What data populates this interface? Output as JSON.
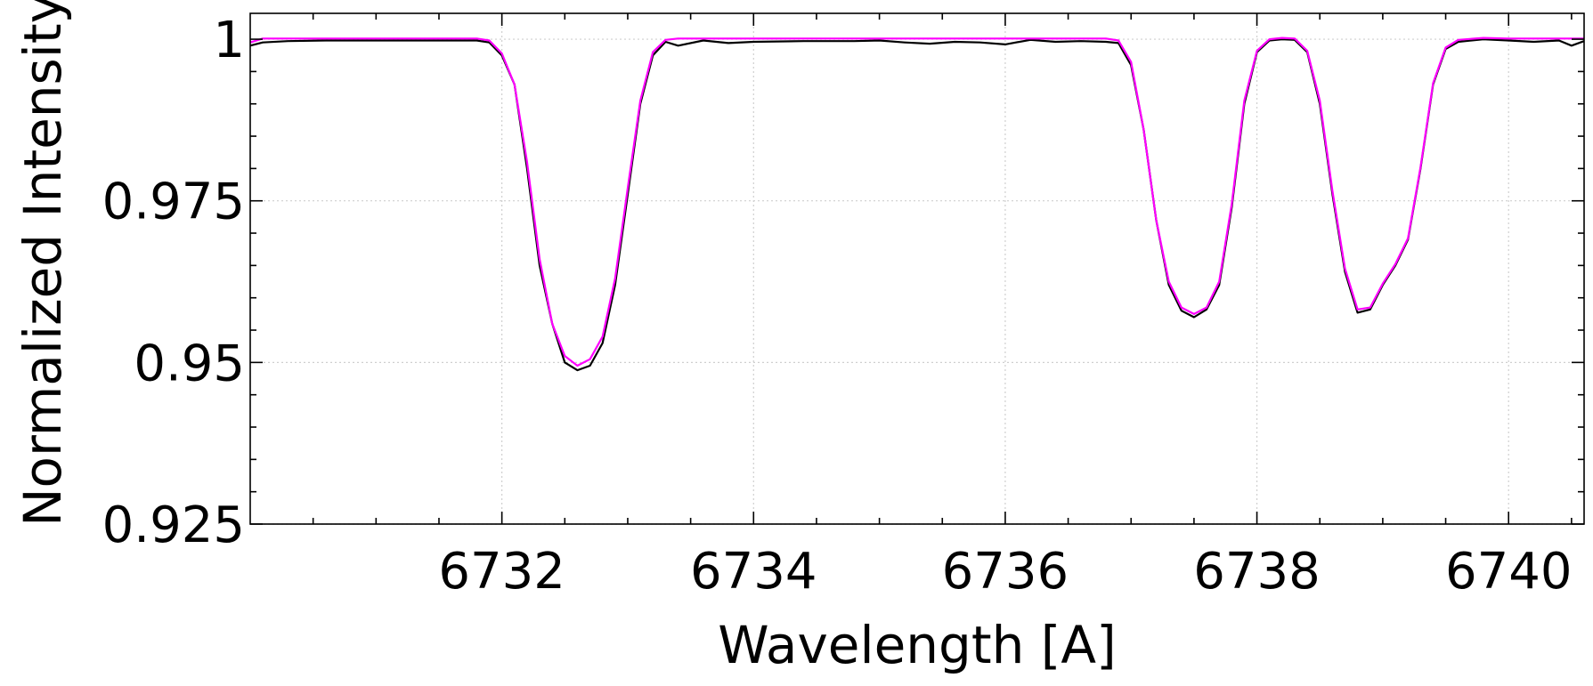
{
  "chart_data": {
    "type": "line",
    "title": "",
    "xlabel": "Wavelength [A]",
    "ylabel": "Normalized Intensity",
    "xlim": [
      6730.0,
      6740.6
    ],
    "ylim": [
      0.925,
      1.004
    ],
    "x_ticks": [
      6732,
      6734,
      6736,
      6738,
      6740
    ],
    "x_tick_labels": [
      "6732",
      "6734",
      "6736",
      "6738",
      "6740"
    ],
    "y_ticks": [
      0.925,
      0.95,
      0.975,
      1.0
    ],
    "y_tick_labels": [
      "0.925",
      "0.95",
      "0.975",
      "1"
    ],
    "grid": true,
    "legend": "none",
    "series": [
      {
        "color": "#000000",
        "x": [
          6730.0,
          6730.1,
          6730.3,
          6730.6,
          6731.0,
          6731.4,
          6731.8,
          6731.9,
          6732.0,
          6732.1,
          6732.2,
          6732.3,
          6732.4,
          6732.5,
          6732.6,
          6732.7,
          6732.8,
          6732.9,
          6733.0,
          6733.1,
          6733.2,
          6733.3,
          6733.4,
          6733.6,
          6733.8,
          6734.0,
          6734.4,
          6734.8,
          6735.0,
          6735.2,
          6735.4,
          6735.6,
          6735.8,
          6736.0,
          6736.2,
          6736.4,
          6736.6,
          6736.8,
          6736.9,
          6737.0,
          6737.1,
          6737.2,
          6737.3,
          6737.4,
          6737.5,
          6737.6,
          6737.7,
          6737.8,
          6737.9,
          6738.0,
          6738.1,
          6738.2,
          6738.3,
          6738.4,
          6738.5,
          6738.6,
          6738.7,
          6738.8,
          6738.9,
          6739.0,
          6739.1,
          6739.2,
          6739.3,
          6739.4,
          6739.5,
          6739.6,
          6739.8,
          6740.0,
          6740.2,
          6740.4,
          6740.5,
          6740.6
        ],
        "y": [
          0.999,
          0.9995,
          0.9997,
          0.9998,
          0.9998,
          0.9998,
          0.9998,
          0.9995,
          0.9975,
          0.993,
          0.98,
          0.965,
          0.956,
          0.95,
          0.9488,
          0.9495,
          0.953,
          0.962,
          0.976,
          0.99,
          0.9975,
          0.9996,
          0.999,
          0.9998,
          0.9994,
          0.9996,
          0.9997,
          0.9997,
          0.9998,
          0.9995,
          0.9993,
          0.9996,
          0.9995,
          0.9992,
          0.9999,
          0.9996,
          0.9997,
          0.9996,
          0.9994,
          0.996,
          0.986,
          0.972,
          0.962,
          0.958,
          0.957,
          0.9582,
          0.962,
          0.974,
          0.99,
          0.998,
          0.9998,
          1.0,
          0.9999,
          0.998,
          0.99,
          0.976,
          0.964,
          0.9577,
          0.9582,
          0.962,
          0.965,
          0.969,
          0.98,
          0.993,
          0.9985,
          0.9996,
          1.0,
          0.9998,
          0.9996,
          0.9998,
          0.999,
          0.9997
        ]
      },
      {
        "color": "#ff00ff",
        "x": [
          6730.0,
          6730.1,
          6730.3,
          6730.6,
          6731.0,
          6731.4,
          6731.8,
          6731.9,
          6732.0,
          6732.1,
          6732.2,
          6732.3,
          6732.4,
          6732.5,
          6732.6,
          6732.7,
          6732.8,
          6732.9,
          6733.0,
          6733.1,
          6733.2,
          6733.3,
          6733.4,
          6733.6,
          6733.8,
          6734.0,
          6734.4,
          6734.8,
          6735.0,
          6735.2,
          6735.4,
          6735.6,
          6735.8,
          6736.0,
          6736.2,
          6736.4,
          6736.6,
          6736.8,
          6736.9,
          6737.0,
          6737.1,
          6737.2,
          6737.3,
          6737.4,
          6737.5,
          6737.6,
          6737.7,
          6737.8,
          6737.9,
          6738.0,
          6738.1,
          6738.2,
          6738.3,
          6738.4,
          6738.5,
          6738.6,
          6738.7,
          6738.8,
          6738.9,
          6739.0,
          6739.1,
          6739.2,
          6739.3,
          6739.4,
          6739.5,
          6739.6,
          6739.8,
          6740.0,
          6740.2,
          6740.4,
          6740.5,
          6740.6
        ],
        "y": [
          0.9995,
          1.0001,
          1.0001,
          1.0001,
          1.0001,
          1.0001,
          1.0001,
          0.9998,
          0.9978,
          0.993,
          0.981,
          0.966,
          0.956,
          0.951,
          0.9495,
          0.9505,
          0.954,
          0.963,
          0.977,
          0.9905,
          0.998,
          0.9999,
          1.0001,
          1.0001,
          1.0001,
          1.0001,
          1.0001,
          1.0001,
          1.0001,
          1.0001,
          1.0001,
          1.0001,
          1.0001,
          1.0001,
          1.0001,
          1.0001,
          1.0001,
          1.0001,
          0.9998,
          0.9965,
          0.986,
          0.972,
          0.9625,
          0.9585,
          0.9575,
          0.9585,
          0.9625,
          0.9745,
          0.9905,
          0.9982,
          1.0,
          1.0002,
          1.0001,
          0.9982,
          0.9905,
          0.9765,
          0.9645,
          0.9582,
          0.9585,
          0.9622,
          0.9652,
          0.9692,
          0.9802,
          0.9932,
          0.9987,
          0.9999,
          1.0002,
          1.0001,
          1.0001,
          1.0001,
          1.0001,
          1.0001
        ]
      }
    ]
  }
}
